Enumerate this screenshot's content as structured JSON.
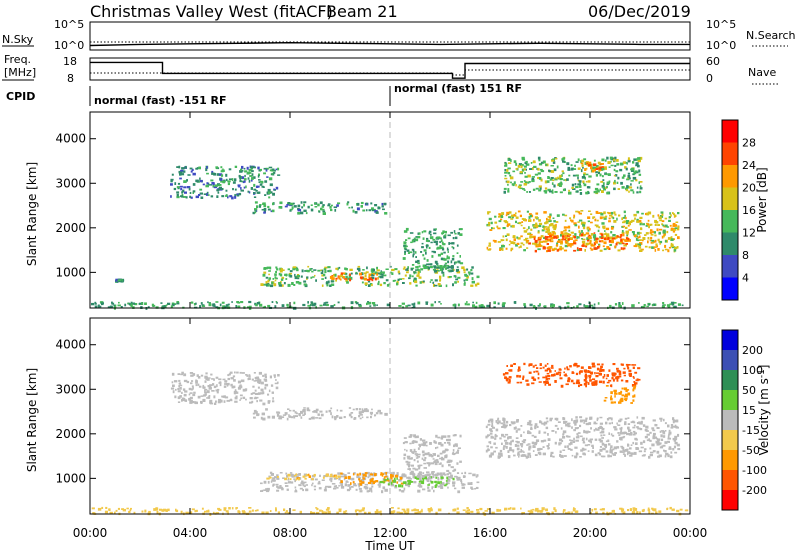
{
  "header": {
    "title": "Christmas Valley West (fitACF)",
    "beam": "Beam 21",
    "date": "06/Dec/2019"
  },
  "nsky_panel": {
    "left_label": "N.Sky",
    "right_label": "N.Search",
    "left_ticks": [
      "10^5",
      "10^0"
    ],
    "right_ticks": [
      "10^5",
      "10^0"
    ]
  },
  "freq_panel": {
    "left_label_line1": "Freq.",
    "left_label_line2": "[MHz]",
    "right_label": "Nave",
    "left_ticks": [
      "18",
      "8"
    ],
    "right_ticks": [
      "60",
      "0"
    ]
  },
  "cpid": {
    "label": "CPID",
    "segments": [
      {
        "text": "normal (fast) -151 RF",
        "start_hour": 0,
        "end_hour": 12
      },
      {
        "text": "normal (fast) 151 RF",
        "start_hour": 12,
        "end_hour": 24
      }
    ]
  },
  "power_colorbar": {
    "label": "Power [dB]",
    "ticks": [
      "4",
      "8",
      "12",
      "16",
      "20",
      "24",
      "28"
    ],
    "colors": [
      "#0000ff",
      "#3f4ac2",
      "#2f8a6a",
      "#46b85a",
      "#d8c21a",
      "#ff9900",
      "#ff4400",
      "#ff0000"
    ]
  },
  "velocity_colorbar": {
    "label": "Velocity [m s",
    "label_sup": "-1",
    "label_end": "]",
    "ticks": [
      "200",
      "100",
      "50",
      "15",
      "-15",
      "-50",
      "-100",
      "-200"
    ],
    "colors": [
      "#0000dd",
      "#3c50b4",
      "#2f8f55",
      "#66cc33",
      "#bbbbbb",
      "#f2c94c",
      "#ff9900",
      "#ff5500",
      "#ff0000"
    ]
  },
  "chart_data": [
    {
      "type": "line",
      "panel": "nsky-nsearch",
      "x": [
        0,
        2,
        4,
        6,
        8,
        10,
        12,
        14,
        16,
        18,
        20,
        22,
        24
      ],
      "series": [
        {
          "name": "N.Sky",
          "values": [
            0.8,
            1.0,
            1.1,
            1.2,
            1.3,
            1.2,
            1.1,
            1.0,
            1.1,
            1.2,
            1.1,
            1.0,
            1.0
          ]
        }
      ],
      "ylim": [
        0,
        5
      ]
    },
    {
      "type": "line",
      "panel": "freq-nave",
      "x": [
        0,
        2.9,
        2.9,
        14.5,
        14.5,
        15,
        15,
        24
      ],
      "series": [
        {
          "name": "Freq.",
          "values": [
            16,
            16,
            11,
            11,
            8.8,
            8.8,
            15.5,
            15.5
          ]
        }
      ],
      "ylim": [
        8,
        18
      ]
    },
    {
      "type": "heatmap",
      "title": "Power [dB]",
      "xlabel": "",
      "ylabel": "Slant Range [km]",
      "xlim": [
        0,
        24
      ],
      "ylim": [
        200,
        4600
      ],
      "yticks": [
        "1000",
        "2000",
        "3000",
        "4000"
      ],
      "value_range": [
        0,
        32
      ],
      "regions": [
        {
          "t0": 0,
          "t1": 24,
          "r0": 220,
          "r1": 360,
          "value": 12
        },
        {
          "t0": 1.0,
          "t1": 1.3,
          "r0": 820,
          "r1": 860,
          "value": 10
        },
        {
          "t0": 3.2,
          "t1": 7.5,
          "r0": 2700,
          "r1": 3400,
          "value": 10
        },
        {
          "t0": 6.5,
          "t1": 11.8,
          "r0": 2350,
          "r1": 2600,
          "value": 11
        },
        {
          "t0": 6.8,
          "t1": 15.5,
          "r0": 720,
          "r1": 1150,
          "value": 14
        },
        {
          "t0": 9.5,
          "t1": 11.5,
          "r0": 850,
          "r1": 1000,
          "value": 25
        },
        {
          "t0": 12.5,
          "t1": 14.8,
          "r0": 1000,
          "r1": 2000,
          "value": 12
        },
        {
          "t0": 15.8,
          "t1": 23.5,
          "r0": 1500,
          "r1": 2400,
          "value": 18
        },
        {
          "t0": 17.5,
          "t1": 21.5,
          "r0": 1500,
          "r1": 1900,
          "value": 24
        },
        {
          "t0": 16.5,
          "t1": 22.0,
          "r0": 2800,
          "r1": 3600,
          "value": 14
        },
        {
          "t0": 19.5,
          "t1": 20.5,
          "r0": 3300,
          "r1": 3500,
          "value": 22
        }
      ]
    },
    {
      "type": "heatmap",
      "title": "Velocity [m s-1]",
      "xlabel": "Time UT",
      "ylabel": "Slant Range [km]",
      "xlim": [
        0,
        24
      ],
      "ylim": [
        200,
        4600
      ],
      "xticks": [
        "00:00",
        "04:00",
        "08:00",
        "12:00",
        "16:00",
        "20:00",
        "00:00"
      ],
      "yticks": [
        "1000",
        "2000",
        "3000",
        "4000"
      ],
      "value_range": [
        -250,
        250
      ],
      "regions": [
        {
          "t0": 0,
          "t1": 24,
          "r0": 220,
          "r1": 360,
          "value": -30
        },
        {
          "t0": 3.2,
          "t1": 7.5,
          "r0": 2700,
          "r1": 3400,
          "value": 0
        },
        {
          "t0": 6.5,
          "t1": 11.8,
          "r0": 2350,
          "r1": 2600,
          "value": 0
        },
        {
          "t0": 6.8,
          "t1": 15.5,
          "r0": 720,
          "r1": 1150,
          "value": 0
        },
        {
          "t0": 7.0,
          "t1": 10.0,
          "r0": 1000,
          "r1": 1120,
          "value": -40
        },
        {
          "t0": 10.0,
          "t1": 12.5,
          "r0": 900,
          "r1": 1150,
          "value": -70
        },
        {
          "t0": 11.5,
          "t1": 14.5,
          "r0": 850,
          "r1": 1050,
          "value": 30
        },
        {
          "t0": 12.5,
          "t1": 14.8,
          "r0": 1000,
          "r1": 2000,
          "value": 0
        },
        {
          "t0": 15.8,
          "t1": 23.5,
          "r0": 1500,
          "r1": 2400,
          "value": 0
        },
        {
          "t0": 16.5,
          "t1": 22.0,
          "r0": 3100,
          "r1": 3600,
          "value": -150
        },
        {
          "t0": 20.5,
          "t1": 21.8,
          "r0": 2700,
          "r1": 3100,
          "value": -80
        }
      ]
    }
  ]
}
